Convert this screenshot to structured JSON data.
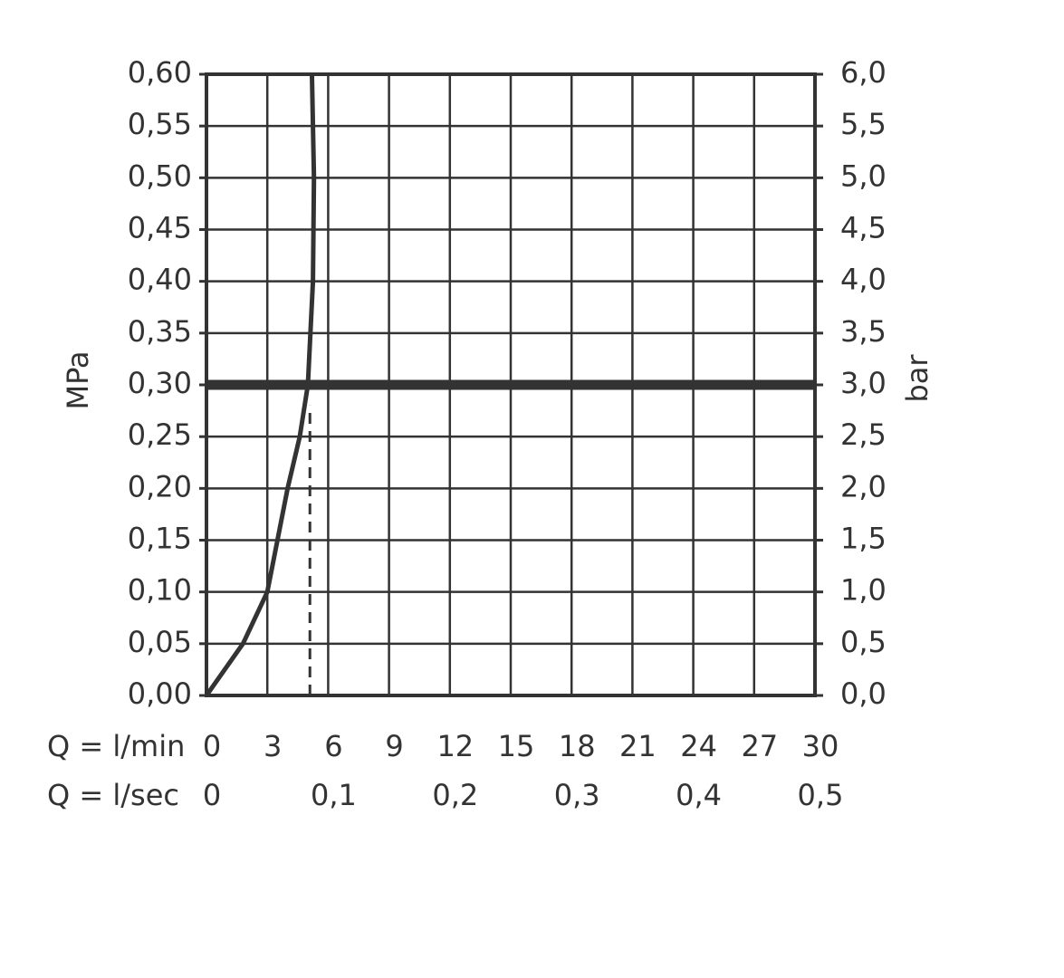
{
  "chart_data": {
    "type": "line",
    "y_label": "MPa",
    "y2_label": "bar",
    "x_label": "Q = l/min",
    "x2_label": "Q = l/sec",
    "xlim": [
      0,
      30
    ],
    "xticks": [
      0,
      3,
      6,
      9,
      12,
      15,
      18,
      21,
      24,
      27,
      30
    ],
    "x2lim": [
      0,
      0.5
    ],
    "x2ticks": [
      0,
      {
        "value": 0.1,
        "label": "0,1"
      },
      {
        "value": 0.2,
        "label": "0,2"
      },
      {
        "value": 0.3,
        "label": "0,3"
      },
      {
        "value": 0.4,
        "label": "0,4"
      },
      {
        "value": 0.5,
        "label": "0,5"
      }
    ],
    "ylim": [
      0,
      0.6
    ],
    "yticks": [
      {
        "value": 0,
        "label": "0,00"
      },
      {
        "value": 0.05,
        "label": "0,05"
      },
      {
        "value": 0.1,
        "label": "0,10"
      },
      {
        "value": 0.15,
        "label": "0,15"
      },
      {
        "value": 0.2,
        "label": "0,20"
      },
      {
        "value": 0.25,
        "label": "0,25"
      },
      {
        "value": 0.3,
        "label": "0,30"
      },
      {
        "value": 0.35,
        "label": "0,35"
      },
      {
        "value": 0.4,
        "label": "0,40"
      },
      {
        "value": 0.45,
        "label": "0,45"
      },
      {
        "value": 0.5,
        "label": "0,50"
      },
      {
        "value": 0.55,
        "label": "0,55"
      },
      {
        "value": 0.6,
        "label": "0,60"
      }
    ],
    "y2lim": [
      0,
      6
    ],
    "y2ticks": [
      {
        "value": 0,
        "label": "0,0"
      },
      {
        "value": 0.5,
        "label": "0,5"
      },
      {
        "value": 1,
        "label": "1,0"
      },
      {
        "value": 1.5,
        "label": "1,5"
      },
      {
        "value": 2,
        "label": "2,0"
      },
      {
        "value": 2.5,
        "label": "2,5"
      },
      {
        "value": 3,
        "label": "3,0"
      },
      {
        "value": 3.5,
        "label": "3,5"
      },
      {
        "value": 4,
        "label": "4,0"
      },
      {
        "value": 4.5,
        "label": "4,5"
      },
      {
        "value": 5,
        "label": "5,0"
      },
      {
        "value": 5.5,
        "label": "5,5"
      },
      {
        "value": 6,
        "label": "6,0"
      }
    ],
    "grid": true,
    "series": [
      {
        "color": "#333333",
        "x": [
          0,
          1.8,
          3,
          4,
          4.6,
          5.0,
          5.25,
          5.3,
          5.2
        ],
        "values": [
          0,
          0.05,
          0.1,
          0.2,
          0.25,
          0.3,
          0.4,
          0.5,
          0.6
        ]
      }
    ],
    "horizontal_line": 0.3,
    "dashed_line": {
      "x": 5.1,
      "y": [
        0,
        0.28
      ]
    }
  }
}
